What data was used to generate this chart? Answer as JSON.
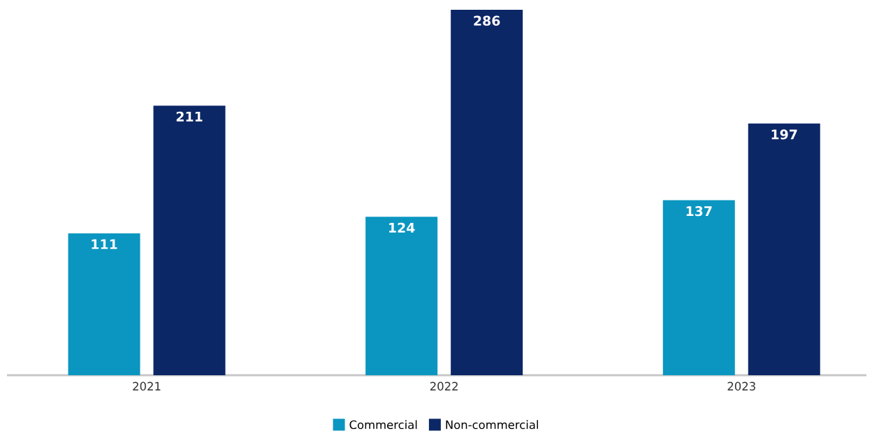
{
  "chart_data": {
    "type": "bar",
    "categories": [
      "2021",
      "2022",
      "2023"
    ],
    "series": [
      {
        "name": "Commercial",
        "color": "#0a96c0",
        "values": [
          111,
          124,
          137
        ]
      },
      {
        "name": "Non-commercial",
        "color": "#0c2766",
        "values": [
          211,
          286,
          197
        ]
      }
    ],
    "data_labels": true,
    "legend": "bottom"
  }
}
